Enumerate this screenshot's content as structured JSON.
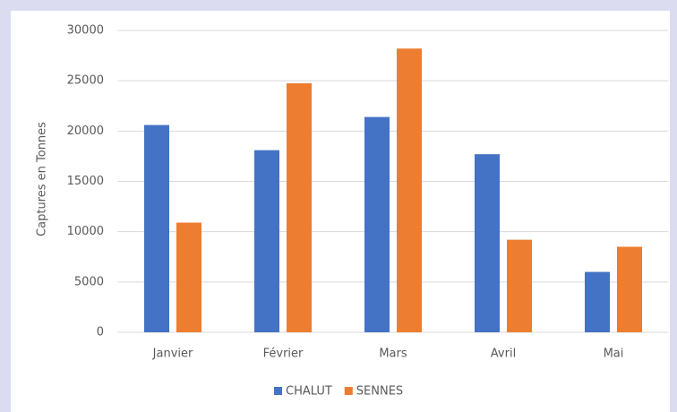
{
  "chart_data": {
    "type": "bar",
    "y_label": "Captures en Tonnes",
    "categories": [
      "Janvier",
      "Février",
      "Mars",
      "Avril",
      "Mai"
    ],
    "series": [
      {
        "name": "CHALUT",
        "color": "#4472c4",
        "values": [
          20600,
          18100,
          21400,
          17700,
          6000
        ]
      },
      {
        "name": "SENNES",
        "color": "#ed7d31",
        "values": [
          10900,
          24750,
          28200,
          9200,
          8500
        ]
      }
    ],
    "ylim": [
      0,
      30000
    ],
    "yticks": [
      0,
      5000,
      10000,
      15000,
      20000,
      25000,
      30000
    ],
    "grid": true,
    "legend": "bottom"
  }
}
